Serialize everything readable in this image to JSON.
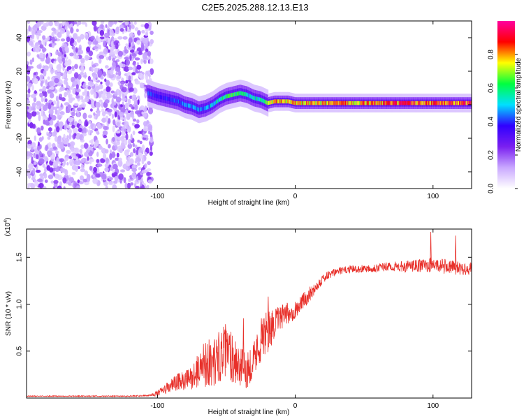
{
  "figure": {
    "title": "C2E5.2025.288.12.13.E13"
  },
  "chart_data": [
    {
      "type": "heatmap",
      "title": "C2E5.2025.288.12.13.E13",
      "xlabel": "Height of straight line (km)",
      "ylabel": "Frequency (Hz)",
      "xlim": [
        -195,
        128
      ],
      "ylim": [
        -50,
        50
      ],
      "xticks": [
        -100,
        0,
        100
      ],
      "xtick_labels": [
        "-100",
        "0",
        "100"
      ],
      "yticks": [
        -40,
        -20,
        0,
        20,
        40
      ],
      "ytick_labels": [
        "-40",
        "-20",
        "0",
        "20",
        "40"
      ],
      "grid": false,
      "colorbar": {
        "label": "Normalized spectral amplitude",
        "range": [
          0,
          1
        ],
        "ticks": [
          0.0,
          0.2,
          0.4,
          0.6,
          0.8
        ],
        "tick_labels": [
          "0.0",
          "0.2",
          "0.4",
          "0.6",
          "0.8"
        ],
        "colormap": "rainbow (white-violet-blue-cyan-green-yellow-red-magenta)",
        "colors": [
          "#ffffff",
          "#c9a8ff",
          "#7a1ff0",
          "#3000ff",
          "#00e0ff",
          "#00ff40",
          "#ffff00",
          "#ff0000",
          "#ff00a0"
        ]
      },
      "noise_region": {
        "x_range": [
          -195,
          -104
        ],
        "y_range": [
          -50,
          50
        ],
        "amplitude": 0.15
      },
      "signal_track": {
        "x": [
          -107,
          -100,
          -95,
          -90,
          -85,
          -80,
          -75,
          -70,
          -65,
          -60,
          -55,
          -50,
          -45,
          -40,
          -35,
          -30,
          -25,
          -20,
          -15,
          -10,
          -5,
          0,
          20,
          50,
          100,
          128
        ],
        "frequency": [
          7,
          5,
          4,
          3,
          2,
          0,
          -1,
          -3,
          -2,
          0,
          3,
          5,
          6,
          7,
          6,
          4,
          3,
          1,
          2,
          2,
          2,
          1,
          1,
          1,
          1,
          1
        ],
        "amplitude": [
          0.4,
          0.35,
          0.35,
          0.4,
          0.4,
          0.45,
          0.45,
          0.45,
          0.45,
          0.5,
          0.55,
          0.6,
          0.6,
          0.6,
          0.5,
          0.5,
          0.6,
          0.7,
          0.8,
          0.8,
          0.8,
          0.75,
          0.75,
          0.8,
          0.85,
          0.85
        ]
      }
    },
    {
      "type": "line",
      "series": [
        {
          "name": "SNR",
          "color": "#e8302a"
        }
      ],
      "xlabel": "Height of straight line (km)",
      "ylabel": "SNR (10 * v/v)",
      "y_multiplier": "(x10",
      "y_multiplier_exponent": "4",
      "y_multiplier_close": ")",
      "xlim": [
        -195,
        128
      ],
      "ylim": [
        0,
        1.8
      ],
      "xticks": [
        -100,
        0,
        100
      ],
      "xtick_labels": [
        "-100",
        "0",
        "100"
      ],
      "yticks": [
        0.5,
        1.0,
        1.5
      ],
      "ytick_labels": [
        "0.5",
        "1.0",
        "1.5"
      ],
      "grid": false,
      "envelope": {
        "x": [
          -195,
          -120,
          -105,
          -100,
          -95,
          -90,
          -85,
          -80,
          -75,
          -70,
          -65,
          -60,
          -55,
          -50,
          -45,
          -40,
          -35,
          -30,
          -25,
          -20,
          -15,
          -10,
          -5,
          0,
          5,
          10,
          20,
          30,
          40,
          50,
          60,
          70,
          80,
          90,
          100,
          110,
          120,
          128
        ],
        "mean": [
          0.02,
          0.02,
          0.03,
          0.05,
          0.09,
          0.13,
          0.17,
          0.18,
          0.22,
          0.3,
          0.4,
          0.36,
          0.45,
          0.5,
          0.45,
          0.32,
          0.3,
          0.42,
          0.6,
          0.7,
          0.8,
          0.86,
          0.9,
          0.94,
          1.02,
          1.1,
          1.27,
          1.35,
          1.37,
          1.38,
          1.39,
          1.4,
          1.4,
          1.41,
          1.42,
          1.4,
          1.38,
          1.38
        ],
        "noise": [
          0.005,
          0.006,
          0.01,
          0.03,
          0.05,
          0.08,
          0.1,
          0.11,
          0.13,
          0.18,
          0.28,
          0.25,
          0.28,
          0.3,
          0.3,
          0.22,
          0.2,
          0.2,
          0.22,
          0.25,
          0.15,
          0.13,
          0.12,
          0.1,
          0.09,
          0.08,
          0.05,
          0.04,
          0.04,
          0.04,
          0.05,
          0.05,
          0.06,
          0.07,
          0.08,
          0.08,
          0.07,
          0.07
        ]
      },
      "peaks": [
        [
          -38,
          0.85
        ],
        [
          -25,
          0.85
        ],
        [
          -20,
          1.08
        ],
        [
          98,
          1.77
        ],
        [
          116,
          1.73
        ]
      ]
    }
  ]
}
